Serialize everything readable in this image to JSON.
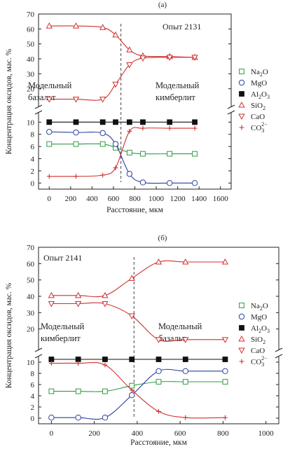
{
  "chart_data": [
    {
      "type": "line",
      "panel_label": "(а)",
      "experiment": "Опыт 2131",
      "zone_left": [
        "Модельный",
        "базальт"
      ],
      "zone_right": [
        "Модельный",
        "кимберлит"
      ],
      "xlabel": "Расстояние, мкм",
      "ylabel": "Концентрация оксидов, мас. %",
      "xlim": [
        -100,
        1700
      ],
      "xticks": [
        "0",
        "200",
        "400",
        "600",
        "800",
        "1000",
        "1200",
        "1400",
        "1600"
      ],
      "boundary_x": 670,
      "y_axis_broken": true,
      "ylim_lower": [
        -1,
        10.5
      ],
      "yticks_lower": [
        "0",
        "2",
        "4",
        "6",
        "8",
        "10"
      ],
      "ylim_upper": [
        10,
        70
      ],
      "yticks_upper": [
        "20",
        "30",
        "40",
        "50",
        "60",
        "70"
      ],
      "legend_position": "right",
      "series": [
        {
          "name": "Na2O",
          "legend": [
            "Na",
            "2",
            "O"
          ],
          "color": "#2e9b3e",
          "marker": "square-open",
          "x": [
            0,
            250,
            500,
            620,
            750,
            875,
            1125,
            1360
          ],
          "y": [
            6.4,
            6.4,
            6.4,
            5.8,
            5.0,
            4.8,
            4.8,
            4.8
          ]
        },
        {
          "name": "MgO",
          "legend": [
            "MgO"
          ],
          "color": "#2a3f9c",
          "marker": "circle-open",
          "x": [
            0,
            250,
            500,
            620,
            750,
            875,
            1125,
            1360
          ],
          "y": [
            8.4,
            8.3,
            8.2,
            6.4,
            1.5,
            0.1,
            0.0,
            0.0
          ]
        },
        {
          "name": "Al2O3",
          "legend": [
            "Al",
            "2",
            "O",
            "3"
          ],
          "color": "#111111",
          "marker": "square-filled",
          "x": [
            0,
            250,
            500,
            620,
            750,
            875,
            1125,
            1360
          ],
          "y": [
            10,
            10,
            10,
            10,
            10,
            10,
            10,
            10
          ]
        },
        {
          "name": "SiO2",
          "legend": [
            "SiO",
            "2"
          ],
          "color": "#d12f2f",
          "marker": "triangle-up-open",
          "x": [
            0,
            250,
            500,
            620,
            750,
            875,
            1125,
            1360
          ],
          "y": [
            62,
            62,
            61,
            56,
            46,
            42,
            41.5,
            41
          ]
        },
        {
          "name": "CaO",
          "legend": [
            "CaO"
          ],
          "color": "#d12f2f",
          "marker": "triangle-down-open",
          "x": [
            0,
            250,
            500,
            620,
            750,
            875,
            1125,
            1360
          ],
          "y": [
            13,
            13,
            13,
            23,
            36,
            40.5,
            41,
            41
          ]
        },
        {
          "name": "CO3 2-",
          "legend": [
            "CO",
            "3",
            "2−"
          ],
          "color": "#d12f2f",
          "marker": "plus",
          "x": [
            0,
            250,
            500,
            620,
            750,
            875,
            1125,
            1360
          ],
          "y": [
            1.1,
            1.1,
            1.3,
            2.5,
            8.5,
            9.0,
            9.0,
            9.0
          ]
        }
      ]
    },
    {
      "type": "line",
      "panel_label": "(б)",
      "experiment": "Опыт 2141",
      "zone_left": [
        "Модельный",
        "кимберлит"
      ],
      "zone_right": [
        "Модельный",
        "базальт"
      ],
      "xlabel": "Расстояние, мкм",
      "ylabel": "Концентрация оксидов, мас. %",
      "xlim": [
        -60,
        1060
      ],
      "xticks": [
        "0",
        "200",
        "400",
        "600",
        "800",
        "1000"
      ],
      "boundary_x": 385,
      "y_axis_broken": true,
      "ylim_lower": [
        -1,
        10.5
      ],
      "yticks_lower": [
        "0",
        "2",
        "4",
        "6",
        "8",
        "10"
      ],
      "ylim_upper": [
        10,
        70
      ],
      "yticks_upper": [
        "20",
        "30",
        "40",
        "50",
        "60",
        "70"
      ],
      "legend_position": "right",
      "series": [
        {
          "name": "Na2O",
          "legend": [
            "Na",
            "2",
            "O"
          ],
          "color": "#2e9b3e",
          "marker": "square-open",
          "x": [
            0,
            125,
            250,
            375,
            500,
            625,
            810
          ],
          "y": [
            4.8,
            4.8,
            4.8,
            5.8,
            6.5,
            6.5,
            6.5
          ]
        },
        {
          "name": "MgO",
          "legend": [
            "MgO"
          ],
          "color": "#2a3f9c",
          "marker": "circle-open",
          "x": [
            0,
            125,
            250,
            375,
            500,
            625,
            810
          ],
          "y": [
            0.1,
            0.1,
            0.1,
            4.1,
            8.4,
            8.4,
            8.4
          ]
        },
        {
          "name": "Al2O3",
          "legend": [
            "Al",
            "2",
            "O",
            "3"
          ],
          "color": "#111111",
          "marker": "square-filled",
          "x": [
            0,
            125,
            250,
            375,
            500,
            625,
            810
          ],
          "y": [
            10.5,
            10.5,
            10.5,
            10.5,
            10.5,
            10.5,
            10.5
          ]
        },
        {
          "name": "SiO2",
          "legend": [
            "SiO",
            "2"
          ],
          "color": "#d12f2f",
          "marker": "triangle-up-open",
          "x": [
            0,
            125,
            250,
            375,
            500,
            625,
            810
          ],
          "y": [
            40.5,
            40.5,
            40.5,
            51,
            61,
            61,
            61
          ]
        },
        {
          "name": "CaO",
          "legend": [
            "CaO"
          ],
          "color": "#d12f2f",
          "marker": "triangle-down-open",
          "x": [
            0,
            125,
            250,
            375,
            500,
            625,
            810
          ],
          "y": [
            35.5,
            35.5,
            35.5,
            28,
            13.5,
            13.5,
            13.5
          ]
        },
        {
          "name": "CO3 2-",
          "legend": [
            "CO",
            "3",
            "2−"
          ],
          "color": "#d12f2f",
          "marker": "plus",
          "x": [
            0,
            125,
            250,
            375,
            500,
            625,
            810
          ],
          "y": [
            9.8,
            9.8,
            9.5,
            5.0,
            1.2,
            0.1,
            0.1
          ]
        }
      ]
    }
  ]
}
